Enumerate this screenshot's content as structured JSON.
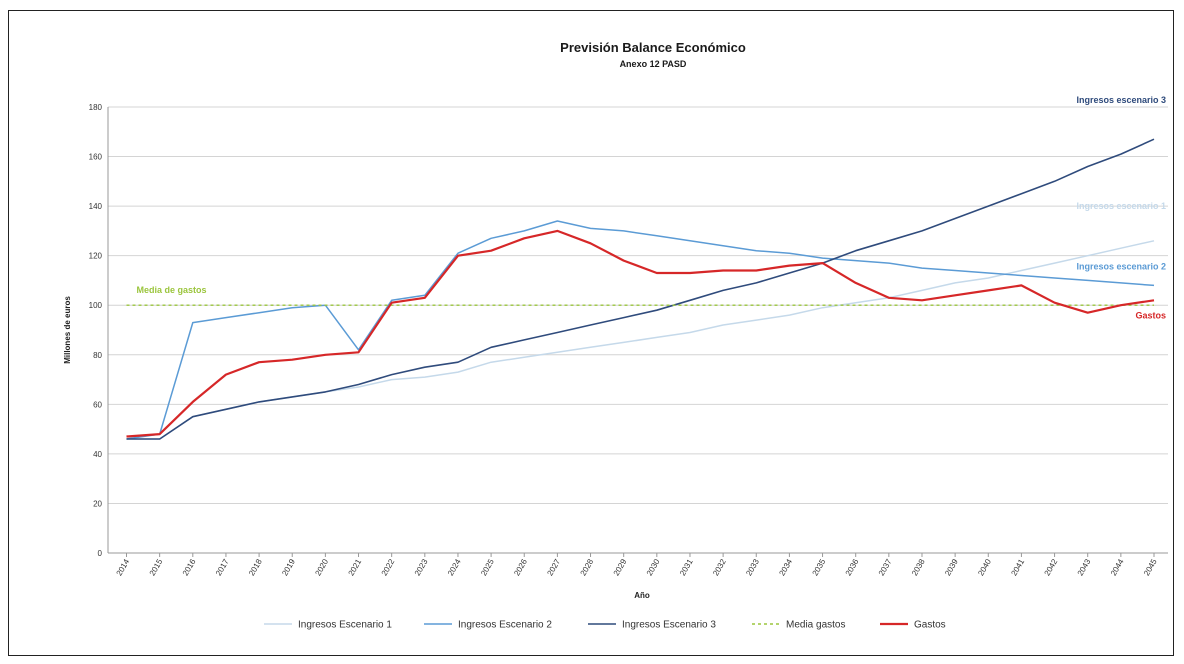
{
  "chart_data": {
    "type": "line",
    "title": "Previsión Balance Económico",
    "subtitle": "Anexo 12 PASD",
    "xlabel": "Año",
    "ylabel": "Millones de euros",
    "ylim": [
      0,
      180
    ],
    "yticks": [
      0,
      20,
      40,
      60,
      80,
      100,
      120,
      140,
      160,
      180
    ],
    "grid": true,
    "legend_position": "bottom",
    "x": [
      "2014",
      "2015",
      "2016",
      "2017",
      "2018",
      "2019",
      "2020",
      "2021",
      "2022",
      "2023",
      "2024",
      "2025",
      "2026",
      "2027",
      "2028",
      "2029",
      "2030",
      "2031",
      "2032",
      "2033",
      "2034",
      "2035",
      "2036",
      "2037",
      "2038",
      "2039",
      "2040",
      "2041",
      "2042",
      "2043",
      "2044",
      "2045"
    ],
    "series": [
      {
        "name": "Ingresos Escenario 1",
        "color": "#c5d9ea",
        "dash": "none",
        "width": 1.5,
        "values": [
          46,
          46,
          55,
          58,
          61,
          63,
          65,
          67,
          70,
          71,
          73,
          77,
          79,
          81,
          83,
          85,
          87,
          89,
          92,
          94,
          96,
          99,
          101,
          103,
          106,
          109,
          111,
          114,
          117,
          120,
          123,
          126
        ]
      },
      {
        "name": "Ingresos Escenario 2",
        "color": "#5b9bd5",
        "dash": "none",
        "width": 1.5,
        "values": [
          46,
          48,
          93,
          95,
          97,
          99,
          100,
          82,
          102,
          104,
          121,
          127,
          130,
          134,
          131,
          130,
          128,
          126,
          124,
          122,
          121,
          119,
          118,
          117,
          115,
          114,
          113,
          112,
          111,
          110,
          109,
          108
        ]
      },
      {
        "name": "Ingresos Escenario 3",
        "color": "#2f4b7c",
        "dash": "none",
        "width": 1.6,
        "values": [
          46,
          46,
          55,
          58,
          61,
          63,
          65,
          68,
          72,
          75,
          77,
          83,
          86,
          89,
          92,
          95,
          98,
          102,
          106,
          109,
          113,
          117,
          122,
          126,
          130,
          135,
          140,
          145,
          150,
          156,
          161,
          167
        ]
      },
      {
        "name": "Media gastos",
        "color": "#9bc53d",
        "dash": "3,3",
        "width": 1.4,
        "values": [
          100,
          100,
          100,
          100,
          100,
          100,
          100,
          100,
          100,
          100,
          100,
          100,
          100,
          100,
          100,
          100,
          100,
          100,
          100,
          100,
          100,
          100,
          100,
          100,
          100,
          100,
          100,
          100,
          100,
          100,
          100,
          100
        ]
      },
      {
        "name": "Gastos",
        "color": "#d62728",
        "dash": "none",
        "width": 2.2,
        "values": [
          47,
          48,
          61,
          72,
          77,
          78,
          80,
          81,
          101,
          103,
          120,
          122,
          127,
          130,
          125,
          118,
          113,
          113,
          114,
          114,
          116,
          117,
          109,
          103,
          102,
          104,
          106,
          108,
          101,
          97,
          100,
          102
        ]
      }
    ],
    "annotations": [
      {
        "text": "Ingresos escenario 3",
        "color": "#2f4b7c",
        "anchor_year": "2045",
        "anchor_value": 167
      },
      {
        "text": "Ingresos escenario 1",
        "color": "#c5d9ea",
        "anchor_year": "2045",
        "anchor_value": 126
      },
      {
        "text": "Ingresos escenario 2",
        "color": "#5b9bd5",
        "anchor_year": "2045",
        "anchor_value": 108
      },
      {
        "text": "Gastos",
        "color": "#d62728",
        "anchor_year": "2045",
        "anchor_value": 102
      },
      {
        "text": "Media de gastos",
        "color": "#9bc53d",
        "anchor_year": "2014",
        "anchor_value": 100
      }
    ]
  }
}
